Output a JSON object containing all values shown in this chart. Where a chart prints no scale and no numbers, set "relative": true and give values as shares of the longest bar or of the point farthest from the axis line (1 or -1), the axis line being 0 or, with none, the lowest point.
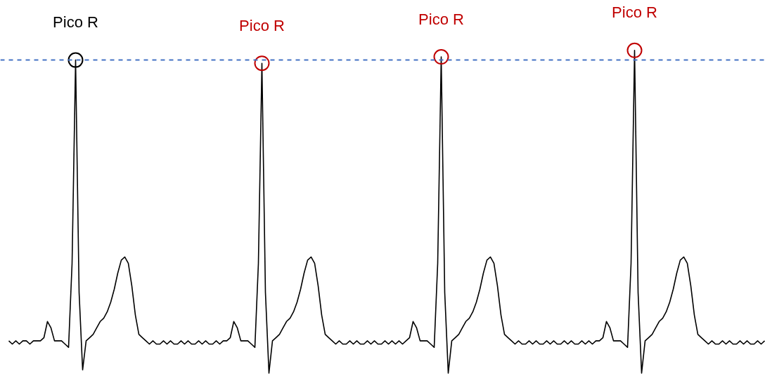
{
  "chart_data": {
    "type": "line",
    "relative": true,
    "grid": false,
    "marker": "none",
    "line_style": "solid",
    "categories": [
      null,
      null,
      null,
      null,
      null,
      null,
      null,
      null,
      null,
      null,
      null,
      null,
      null,
      null,
      null,
      null,
      null,
      null,
      null,
      null,
      null,
      null,
      null,
      null,
      null,
      null,
      null,
      null,
      null,
      null,
      null,
      null,
      null,
      null,
      null,
      null,
      null,
      null,
      null,
      null,
      null,
      null,
      null,
      null,
      null,
      null,
      null,
      null,
      null,
      null,
      null,
      null,
      null,
      null,
      null,
      null,
      null,
      null,
      null,
      null,
      null,
      null,
      null,
      null,
      null,
      null,
      null,
      null,
      null,
      null,
      null,
      null,
      null,
      null,
      null,
      null,
      null,
      null,
      null,
      null,
      null,
      null,
      null,
      null,
      null,
      null,
      null,
      null,
      null,
      null,
      null,
      null,
      null,
      null,
      null,
      null,
      null,
      null,
      null,
      null,
      null,
      null,
      null,
      null,
      null,
      null,
      null,
      null,
      null,
      null,
      null,
      null,
      null,
      null,
      null,
      null,
      null,
      null,
      null,
      null,
      null,
      null,
      null,
      null,
      null,
      null,
      null,
      null,
      null,
      null,
      null,
      null,
      null,
      null,
      null,
      null,
      null,
      null,
      null,
      null,
      null,
      null,
      null,
      null,
      null,
      null,
      null,
      null,
      null,
      null,
      null,
      null,
      null,
      null,
      null,
      null,
      null,
      null,
      null,
      null,
      null,
      null,
      null,
      null,
      null,
      null,
      null,
      null,
      null,
      null,
      null,
      null,
      null,
      null,
      null,
      null,
      null,
      null,
      null,
      null,
      null,
      null,
      null,
      null,
      null,
      null,
      null,
      null,
      null,
      null,
      null,
      null,
      null,
      null,
      null,
      null,
      null,
      null,
      null,
      null,
      null,
      null,
      null,
      null,
      null,
      null,
      null,
      null,
      null,
      null,
      null,
      null,
      null,
      null,
      null,
      null
    ],
    "series": [
      {
        "color": "#000000",
        "values": [
          0.1,
          0.09,
          0.1,
          0.09,
          0.1,
          0.1,
          0.09,
          0.1,
          0.1,
          0.1,
          0.11,
          0.16,
          0.14,
          0.1,
          0.1,
          0.1,
          0.09,
          0.08,
          0.34,
          0.97,
          0.25,
          0.01,
          0.1,
          0.11,
          0.12,
          0.14,
          0.16,
          0.17,
          0.19,
          0.22,
          0.26,
          0.31,
          0.35,
          0.36,
          0.34,
          0.27,
          0.18,
          0.12,
          0.11,
          0.1,
          0.09,
          0.1,
          0.09,
          0.09,
          0.1,
          0.09,
          0.1,
          0.09,
          0.09,
          0.1,
          0.09,
          0.1,
          0.09,
          0.09,
          0.1,
          0.09,
          0.1,
          0.09,
          0.09,
          0.1,
          0.09,
          0.1,
          0.1,
          0.11,
          0.16,
          0.14,
          0.1,
          0.1,
          0.1,
          0.09,
          0.08,
          0.34,
          0.96,
          0.25,
          0.0,
          0.1,
          0.11,
          0.12,
          0.14,
          0.16,
          0.17,
          0.19,
          0.22,
          0.26,
          0.31,
          0.35,
          0.36,
          0.34,
          0.27,
          0.18,
          0.12,
          0.11,
          0.1,
          0.09,
          0.1,
          0.09,
          0.09,
          0.1,
          0.09,
          0.1,
          0.09,
          0.09,
          0.1,
          0.09,
          0.1,
          0.09,
          0.09,
          0.1,
          0.09,
          0.1,
          0.09,
          0.1,
          0.09,
          0.1,
          0.11,
          0.16,
          0.14,
          0.1,
          0.1,
          0.1,
          0.09,
          0.08,
          0.34,
          0.98,
          0.25,
          0.0,
          0.1,
          0.11,
          0.12,
          0.14,
          0.16,
          0.17,
          0.19,
          0.22,
          0.26,
          0.31,
          0.35,
          0.36,
          0.34,
          0.27,
          0.18,
          0.12,
          0.11,
          0.1,
          0.09,
          0.1,
          0.09,
          0.09,
          0.1,
          0.09,
          0.1,
          0.09,
          0.09,
          0.1,
          0.09,
          0.1,
          0.09,
          0.09,
          0.1,
          0.09,
          0.1,
          0.09,
          0.09,
          0.1,
          0.09,
          0.1,
          0.09,
          0.1,
          0.1,
          0.11,
          0.16,
          0.14,
          0.1,
          0.1,
          0.1,
          0.09,
          0.08,
          0.34,
          1.0,
          0.25,
          0.0,
          0.1,
          0.11,
          0.12,
          0.14,
          0.16,
          0.17,
          0.19,
          0.22,
          0.26,
          0.31,
          0.35,
          0.36,
          0.34,
          0.27,
          0.18,
          0.12,
          0.11,
          0.1,
          0.09,
          0.1,
          0.09,
          0.09,
          0.1,
          0.09,
          0.1,
          0.09,
          0.09,
          0.1,
          0.09,
          0.1,
          0.09,
          0.09,
          0.1,
          0.09,
          0.1
        ]
      }
    ],
    "ref_lines": [
      {
        "axis": "y",
        "value": 0.97,
        "color": "#4472c4",
        "line_style": "dashed"
      }
    ],
    "annotations": [
      "Pico R",
      "Pico R",
      "Pico R",
      "Pico R"
    ]
  }
}
